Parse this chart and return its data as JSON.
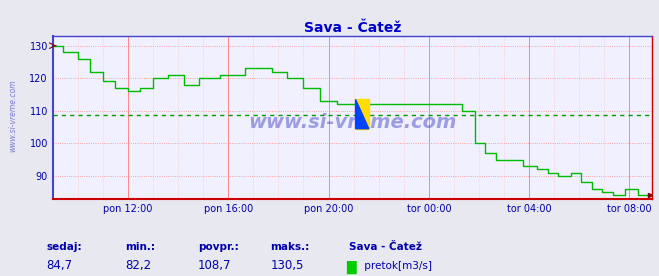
{
  "title": "Sava - Čatež",
  "bg_color": "#e8e8f0",
  "plot_bg_color": "#ffffff",
  "inner_bg_color": "#f0f0ff",
  "line_color": "#00bb00",
  "avg_line_color": "#009900",
  "avg_value": 108.7,
  "ylim": [
    83,
    133
  ],
  "yticks": [
    90,
    100,
    110,
    120,
    130
  ],
  "tick_color": "#0000aa",
  "title_color": "#0000cc",
  "grid_color_major": "#ff8888",
  "grid_color_minor": "#ffbbbb",
  "watermark": "www.si-vreme.com",
  "watermark_color": "#2222bb",
  "sidebar_text": "www.si-vreme.com",
  "footer_labels": [
    "sedaj:",
    "min.:",
    "povpr.:",
    "maks.:"
  ],
  "footer_values": [
    "84,7",
    "82,2",
    "108,7",
    "130,5"
  ],
  "footer_station": "Sava - Čatež",
  "footer_legend_label": " pretok[m3/s]",
  "footer_legend_color": "#00cc00",
  "xtick_labels": [
    "pon 12:00",
    "pon 16:00",
    "pon 20:00",
    "tor 00:00",
    "tor 04:00",
    "tor 08:00"
  ],
  "num_points": 288,
  "tick_indices": [
    36,
    84,
    132,
    180,
    228,
    276
  ],
  "border_left_color": "#4444cc",
  "border_bottom_color": "#cc0000",
  "logo_yellow": "#ffdd00",
  "logo_blue": "#0044ff",
  "logo_green": "#00cc00"
}
